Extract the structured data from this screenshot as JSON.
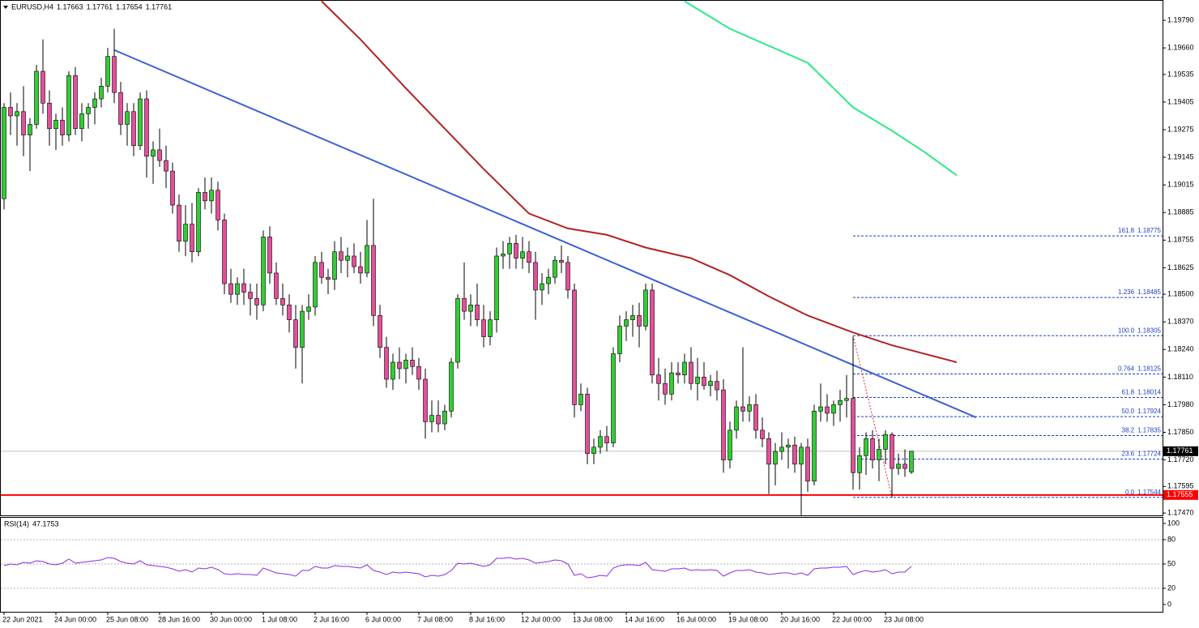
{
  "chart_data": [
    {
      "type": "candlestick",
      "title": "EURUSD,H4",
      "ohlc_header": [
        1.17663,
        1.17761,
        1.17654,
        1.17761
      ],
      "categories": [
        "22 Jun 2021",
        null,
        null,
        null,
        null,
        null,
        null,
        null,
        "24 Jun 00:00",
        null,
        null,
        null,
        null,
        null,
        null,
        null,
        "25 Jun 08:00",
        null,
        null,
        null,
        null,
        null,
        null,
        null,
        "28 Jun 16:00",
        null,
        null,
        null,
        null,
        null,
        null,
        null,
        "30 Jun 00:00",
        null,
        null,
        null,
        null,
        null,
        null,
        null,
        "1 Jul 08:00",
        null,
        null,
        null,
        null,
        null,
        null,
        null,
        "2 Jul 16:00",
        null,
        null,
        null,
        null,
        null,
        null,
        null,
        "6 Jul 00:00",
        null,
        null,
        null,
        null,
        null,
        null,
        null,
        "7 Jul 08:00",
        null,
        null,
        null,
        null,
        null,
        null,
        null,
        "8 Jul 16:00",
        null,
        null,
        null,
        null,
        null,
        null,
        null,
        "12 Jul 00:00",
        null,
        null,
        null,
        null,
        null,
        null,
        null,
        "13 Jul 08:00",
        null,
        null,
        null,
        null,
        null,
        null,
        null,
        "14 Jul 16:00",
        null,
        null,
        null,
        null,
        null,
        null,
        null,
        "16 Jul 00:00",
        null,
        null,
        null,
        null,
        null,
        null,
        null,
        "19 Jul 08:00",
        null,
        null,
        null,
        null,
        null,
        null,
        null,
        "20 Jul 16:00",
        null,
        null,
        null,
        null,
        null,
        null,
        null,
        "22 Jul 00:00",
        null,
        null,
        null,
        null,
        null,
        null,
        null,
        "23 Jul 08:00",
        null,
        null,
        null,
        null
      ],
      "open": [
        1.1895,
        1.1938,
        1.1934,
        1.1936,
        1.1925,
        1.193,
        1.1955,
        1.194,
        1.1928,
        1.1932,
        1.1925,
        1.1953,
        1.1928,
        1.1935,
        1.1938,
        1.1942,
        1.1948,
        1.1962,
        1.1945,
        1.193,
        1.1936,
        1.192,
        1.1942,
        1.1915,
        1.1918,
        1.1913,
        1.1908,
        1.1892,
        1.1875,
        1.1883,
        1.187,
        1.1898,
        1.1894,
        1.1899,
        1.1885,
        1.1855,
        1.185,
        1.1855,
        1.1851,
        1.1848,
        1.1845,
        1.1877,
        1.186,
        1.1848,
        1.1845,
        1.1838,
        1.1825,
        1.1842,
        1.1844,
        1.1865,
        1.1858,
        1.1857,
        1.187,
        1.1866,
        1.1868,
        1.1863,
        1.186,
        1.1873,
        1.184,
        1.1825,
        1.181,
        1.1818,
        1.1815,
        1.1819,
        1.1816,
        1.181,
        1.179,
        1.1793,
        1.1789,
        1.1795,
        1.1818,
        1.1848,
        1.1842,
        1.1845,
        1.1838,
        1.183,
        1.1838,
        1.1868,
        1.1869,
        1.1874,
        1.1867,
        1.187,
        1.1865,
        1.1852,
        1.1855,
        1.1858,
        1.1866,
        1.1865,
        1.1852,
        1.1798,
        1.1803,
        1.1775,
        1.1778,
        1.1783,
        1.178,
        1.1822,
        1.1835,
        1.1838,
        1.184,
        1.1835,
        1.1852,
        1.1812,
        1.1808,
        1.1803,
        1.1813,
        1.1812,
        1.1818,
        1.1808,
        1.1811,
        1.1807,
        1.1809,
        1.1805,
        1.1772,
        1.1786,
        1.1797,
        1.1795,
        1.1798,
        1.1786,
        1.1782,
        1.177,
        1.1776,
        1.1778,
        1.1779,
        1.177,
        1.1778,
        1.1762,
        1.1795,
        1.1797,
        1.1794,
        1.1798,
        1.18,
        1.1801,
        1.1766,
        1.1774,
        1.1782,
        1.1772,
        1.1777,
        1.1784,
        1.1768,
        1.177,
        1.17663
      ],
      "high": [
        1.194,
        1.1945,
        1.194,
        1.1948,
        1.1933,
        1.1958,
        1.197,
        1.1946,
        1.1935,
        1.1938,
        1.1955,
        1.1957,
        1.194,
        1.194,
        1.1945,
        1.1952,
        1.1966,
        1.1975,
        1.195,
        1.194,
        1.194,
        1.1945,
        1.1946,
        1.1922,
        1.1928,
        1.192,
        1.1912,
        1.1897,
        1.1892,
        1.1893,
        1.19,
        1.1905,
        1.1905,
        1.1903,
        1.1888,
        1.1862,
        1.1858,
        1.1862,
        1.1855,
        1.1855,
        1.188,
        1.1882,
        1.1865,
        1.1855,
        1.185,
        1.1845,
        1.1845,
        1.185,
        1.1868,
        1.187,
        1.1862,
        1.1875,
        1.1877,
        1.1872,
        1.1874,
        1.187,
        1.1885,
        1.1895,
        1.1845,
        1.183,
        1.1822,
        1.1825,
        1.1822,
        1.1825,
        1.182,
        1.1815,
        1.18,
        1.18,
        1.1798,
        1.182,
        1.185,
        1.1865,
        1.185,
        1.1855,
        1.1845,
        1.1842,
        1.1872,
        1.1875,
        1.1877,
        1.1878,
        1.1877,
        1.1875,
        1.187,
        1.186,
        1.1862,
        1.1868,
        1.1873,
        1.1868,
        1.1855,
        1.1808,
        1.1806,
        1.1782,
        1.1786,
        1.1788,
        1.1825,
        1.184,
        1.1842,
        1.1845,
        1.1846,
        1.1855,
        1.1855,
        1.182,
        1.1815,
        1.1818,
        1.1818,
        1.1822,
        1.1825,
        1.182,
        1.1818,
        1.1812,
        1.1814,
        1.181,
        1.179,
        1.18,
        1.1825,
        1.1802,
        1.1803,
        1.1792,
        1.1785,
        1.178,
        1.1785,
        1.1782,
        1.1783,
        1.178,
        1.1782,
        1.1798,
        1.1808,
        1.1803,
        1.18,
        1.1805,
        1.1812,
        1.183,
        1.1778,
        1.1785,
        1.1786,
        1.1782,
        1.1786,
        1.1785,
        1.1775,
        1.1777,
        1.17761
      ],
      "low": [
        1.189,
        1.1925,
        1.192,
        1.1915,
        1.1908,
        1.1928,
        1.1935,
        1.192,
        1.1918,
        1.192,
        1.1922,
        1.1925,
        1.1922,
        1.1928,
        1.193,
        1.1938,
        1.1945,
        1.194,
        1.1925,
        1.192,
        1.1915,
        1.1918,
        1.1905,
        1.1902,
        1.191,
        1.19,
        1.1888,
        1.187,
        1.1868,
        1.1865,
        1.1868,
        1.189,
        1.1888,
        1.188,
        1.185,
        1.1846,
        1.1845,
        1.1845,
        1.184,
        1.1838,
        1.1842,
        1.1855,
        1.1845,
        1.184,
        1.1832,
        1.1815,
        1.1808,
        1.1838,
        1.184,
        1.1855,
        1.185,
        1.1852,
        1.186,
        1.1858,
        1.186,
        1.1855,
        1.1858,
        1.1835,
        1.182,
        1.1806,
        1.1805,
        1.181,
        1.1808,
        1.1812,
        1.1805,
        1.1782,
        1.1785,
        1.1785,
        1.1786,
        1.1792,
        1.1815,
        1.1838,
        1.1835,
        1.1835,
        1.1825,
        1.1826,
        1.1832,
        1.1862,
        1.1862,
        1.1862,
        1.1862,
        1.186,
        1.1838,
        1.1845,
        1.185,
        1.1855,
        1.186,
        1.1848,
        1.1792,
        1.1795,
        1.177,
        1.177,
        1.1775,
        1.1776,
        1.1778,
        1.1818,
        1.1828,
        1.183,
        1.1825,
        1.1833,
        1.1808,
        1.18,
        1.1798,
        1.18,
        1.1808,
        1.1808,
        1.1805,
        1.18,
        1.1805,
        1.1802,
        1.18,
        1.1766,
        1.1768,
        1.1782,
        1.179,
        1.179,
        1.1782,
        1.1778,
        1.1756,
        1.176,
        1.1772,
        1.1768,
        1.1766,
        1.1746,
        1.1757,
        1.176,
        1.179,
        1.179,
        1.1788,
        1.179,
        1.1792,
        1.1758,
        1.1758,
        1.1765,
        1.1768,
        1.1762,
        1.177,
        1.17544,
        1.1765,
        1.1764,
        1.17654
      ],
      "close": [
        1.1938,
        1.1934,
        1.1936,
        1.1925,
        1.193,
        1.1955,
        1.194,
        1.1928,
        1.1932,
        1.1925,
        1.1953,
        1.1928,
        1.1935,
        1.1938,
        1.1942,
        1.1948,
        1.1962,
        1.1945,
        1.193,
        1.1936,
        1.192,
        1.1942,
        1.1915,
        1.1918,
        1.1913,
        1.1908,
        1.1892,
        1.1875,
        1.1883,
        1.187,
        1.1898,
        1.1894,
        1.1899,
        1.1885,
        1.1855,
        1.185,
        1.1855,
        1.1851,
        1.1848,
        1.1845,
        1.1877,
        1.186,
        1.1848,
        1.1845,
        1.1838,
        1.1825,
        1.1842,
        1.1844,
        1.1865,
        1.1858,
        1.1857,
        1.187,
        1.1866,
        1.1868,
        1.1863,
        1.186,
        1.1873,
        1.184,
        1.1825,
        1.181,
        1.1818,
        1.1815,
        1.1819,
        1.1816,
        1.181,
        1.179,
        1.1793,
        1.1789,
        1.1795,
        1.1818,
        1.1848,
        1.1842,
        1.1845,
        1.1838,
        1.183,
        1.1838,
        1.1868,
        1.1869,
        1.1874,
        1.1867,
        1.187,
        1.1865,
        1.1852,
        1.1855,
        1.1858,
        1.1866,
        1.1865,
        1.1852,
        1.1798,
        1.1803,
        1.1775,
        1.1778,
        1.1783,
        1.178,
        1.1822,
        1.1835,
        1.1838,
        1.184,
        1.1835,
        1.1852,
        1.1812,
        1.1808,
        1.1803,
        1.1813,
        1.1812,
        1.1818,
        1.1808,
        1.1811,
        1.1807,
        1.1809,
        1.1805,
        1.1772,
        1.1786,
        1.1797,
        1.1795,
        1.1798,
        1.1786,
        1.1782,
        1.177,
        1.1776,
        1.1778,
        1.1779,
        1.177,
        1.1778,
        1.1762,
        1.1795,
        1.1797,
        1.1794,
        1.1798,
        1.18,
        1.1801,
        1.1766,
        1.1774,
        1.1782,
        1.1772,
        1.1777,
        1.1784,
        1.1768,
        1.177,
        1.1768,
        1.17761
      ],
      "up_color": "#32cd32",
      "down_color": "#e2509a",
      "ylim": [
        1.17459,
        1.19878
      ],
      "yticks": [
        {
          "value": 1.1979,
          "label": "1.19790"
        },
        {
          "value": 1.1966,
          "label": "1.19660"
        },
        1.19535,
        1.19405,
        1.19275,
        1.19145,
        1.19015,
        1.18885,
        1.18755,
        1.18625,
        {
          "value": 1.185,
          "label": "1.18500"
        },
        {
          "value": 1.1837,
          "label": "1.18370"
        },
        {
          "value": 1.1824,
          "label": "1.18240"
        },
        {
          "value": 1.1811,
          "label": "1.18110"
        },
        {
          "value": 1.1798,
          "label": "1.17980"
        },
        {
          "value": 1.1785,
          "label": "1.17850"
        },
        {
          "value": 1.1772,
          "label": "1.17720"
        },
        1.17595,
        {
          "value": 1.1747,
          "label": "1.17470"
        }
      ],
      "lines": [
        {
          "color": "#b22222",
          "x": [
            49,
            55,
            62,
            68,
            74,
            81,
            87,
            93,
            99,
            106,
            112,
            118,
            124,
            131,
            137,
            142,
            147
          ],
          "values": [
            1.1988,
            1.197,
            1.1947,
            1.1928,
            1.1909,
            1.1888,
            1.1881,
            1.1878,
            1.1872,
            1.1867,
            1.1859,
            1.1849,
            1.184,
            1.1832,
            1.1826,
            1.1822,
            1.1818
          ]
        },
        {
          "color": "#2ee88a",
          "x": [
            105,
            112,
            124,
            131,
            137,
            142,
            147
          ],
          "values": [
            1.1988,
            1.1975,
            1.1959,
            1.1938,
            1.1927,
            1.1917,
            1.1906
          ]
        },
        {
          "color": "#3c5fd6",
          "x": [
            17,
            150
          ],
          "values": [
            1.1965,
            1.1792
          ]
        }
      ],
      "fib": {
        "color": "#1f3fcc",
        "x": [
          131,
          137
        ],
        "levels": [
          {
            "ratio": "161.8",
            "price": 1.18775
          },
          {
            "ratio": "1.236",
            "price": 1.18485
          },
          {
            "ratio": "100.0",
            "price": 1.18305
          },
          {
            "ratio": "0.764",
            "price": 1.18125
          },
          {
            "ratio": "61.8",
            "price": 1.18014
          },
          {
            "ratio": "50.0",
            "price": 1.17924
          },
          {
            "ratio": "38.2",
            "price": 1.17835
          },
          {
            "ratio": "23.6",
            "price": 1.17724
          },
          {
            "ratio": "0.0",
            "price": 1.17544
          }
        ]
      },
      "price_lines": [
        {
          "value": 1.17761,
          "color": "#c0c0c0",
          "tag_color": "#000000"
        },
        {
          "value": 1.17555,
          "color": "#ff0000",
          "tag_color": "#ff0000"
        }
      ]
    },
    {
      "type": "line",
      "title": "RSI(14)",
      "color": "#8a2be2",
      "values": [
        48,
        50,
        49,
        52,
        51,
        54,
        53,
        50,
        49,
        51,
        56,
        51,
        52,
        53,
        54,
        55,
        58,
        57,
        53,
        51,
        50,
        54,
        49,
        48,
        47,
        46,
        44,
        41,
        43,
        40,
        45,
        44,
        46,
        43,
        38,
        37,
        38,
        37,
        37,
        36,
        45,
        42,
        39,
        38,
        37,
        35,
        42,
        42,
        47,
        45,
        45,
        48,
        47,
        47,
        46,
        45,
        49,
        42,
        40,
        37,
        40,
        39,
        40,
        39,
        38,
        34,
        36,
        35,
        37,
        42,
        51,
        50,
        51,
        49,
        47,
        49,
        57,
        57,
        58,
        56,
        57,
        55,
        51,
        52,
        53,
        55,
        54,
        50,
        36,
        38,
        33,
        34,
        36,
        35,
        45,
        48,
        49,
        49,
        48,
        52,
        43,
        42,
        41,
        44,
        44,
        45,
        42,
        43,
        42,
        43,
        42,
        35,
        39,
        42,
        42,
        43,
        40,
        39,
        37,
        38,
        39,
        39,
        37,
        39,
        36,
        44,
        45,
        45,
        46,
        46,
        47,
        37,
        40,
        42,
        40,
        41,
        43,
        38,
        40,
        40,
        47.1753
      ],
      "ylim": [
        -9,
        108
      ],
      "yticks": [
        100,
        80,
        50,
        20,
        0
      ],
      "levels": [
        80,
        50,
        20
      ]
    }
  ]
}
